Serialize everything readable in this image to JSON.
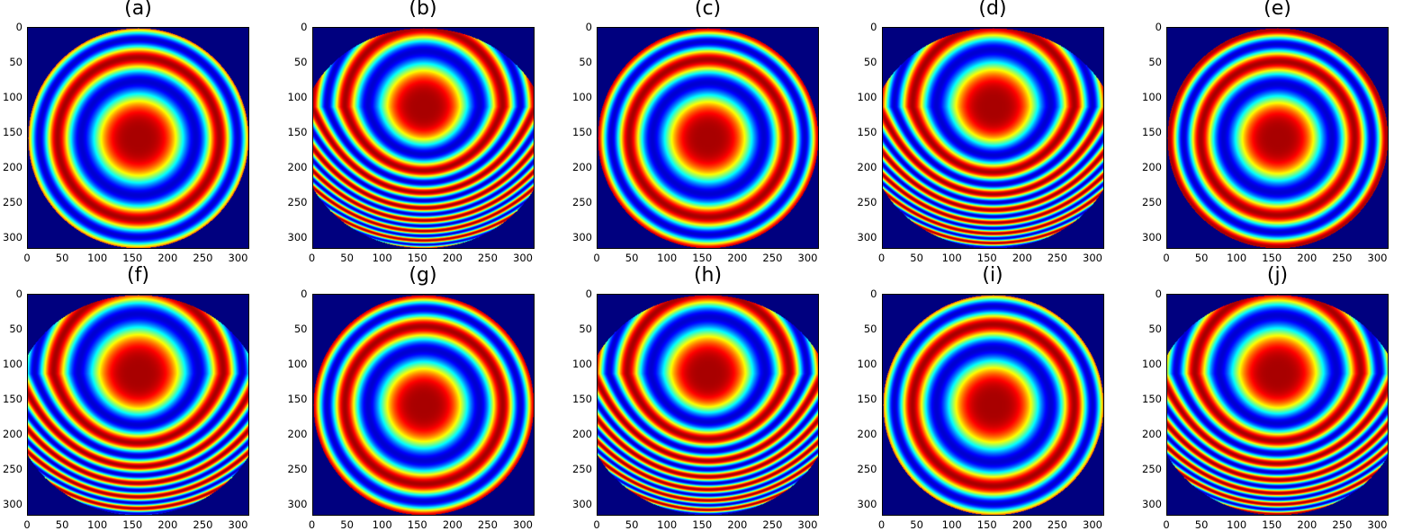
{
  "chart_data": {
    "type": "heatmap",
    "description_type": "imshow-grid",
    "colormap": "jet",
    "image_size": [
      316,
      316
    ],
    "xlim": [
      0,
      316
    ],
    "ylim": [
      316,
      0
    ],
    "xticks": [
      "0",
      "50",
      "100",
      "150",
      "200",
      "250",
      "300"
    ],
    "yticks": [
      "0",
      "50",
      "100",
      "150",
      "200",
      "250",
      "300"
    ],
    "background_color": "#00007f",
    "panels": [
      {
        "title": "(a)",
        "fringe_center": [
          158,
          158
        ],
        "ring_scale": 82,
        "asym": 0.0,
        "aperture": "circle"
      },
      {
        "title": "(b)",
        "fringe_center": [
          158,
          113
        ],
        "ring_scale": 80,
        "asym": 0.9,
        "aperture": "wide"
      },
      {
        "title": "(c)",
        "fringe_center": [
          158,
          158
        ],
        "ring_scale": 80,
        "asym": 0.0,
        "aperture": "circle"
      },
      {
        "title": "(d)",
        "fringe_center": [
          158,
          113
        ],
        "ring_scale": 82,
        "asym": 0.9,
        "aperture": "wide"
      },
      {
        "title": "(e)",
        "fringe_center": [
          158,
          158
        ],
        "ring_scale": 78,
        "asym": 0.0,
        "aperture": "circle"
      },
      {
        "title": "(f)",
        "fringe_center": [
          158,
          113
        ],
        "ring_scale": 86,
        "asym": 0.8,
        "aperture": "wide"
      },
      {
        "title": "(g)",
        "fringe_center": [
          158,
          158
        ],
        "ring_scale": 80,
        "asym": 0.0,
        "aperture": "circle"
      },
      {
        "title": "(h)",
        "fringe_center": [
          158,
          113
        ],
        "ring_scale": 82,
        "asym": 0.9,
        "aperture": "wide"
      },
      {
        "title": "(i)",
        "fringe_center": [
          158,
          158
        ],
        "ring_scale": 82,
        "asym": 0.0,
        "aperture": "circle"
      },
      {
        "title": "(j)",
        "fringe_center": [
          158,
          113
        ],
        "ring_scale": 84,
        "asym": 0.85,
        "aperture": "wide"
      }
    ]
  }
}
